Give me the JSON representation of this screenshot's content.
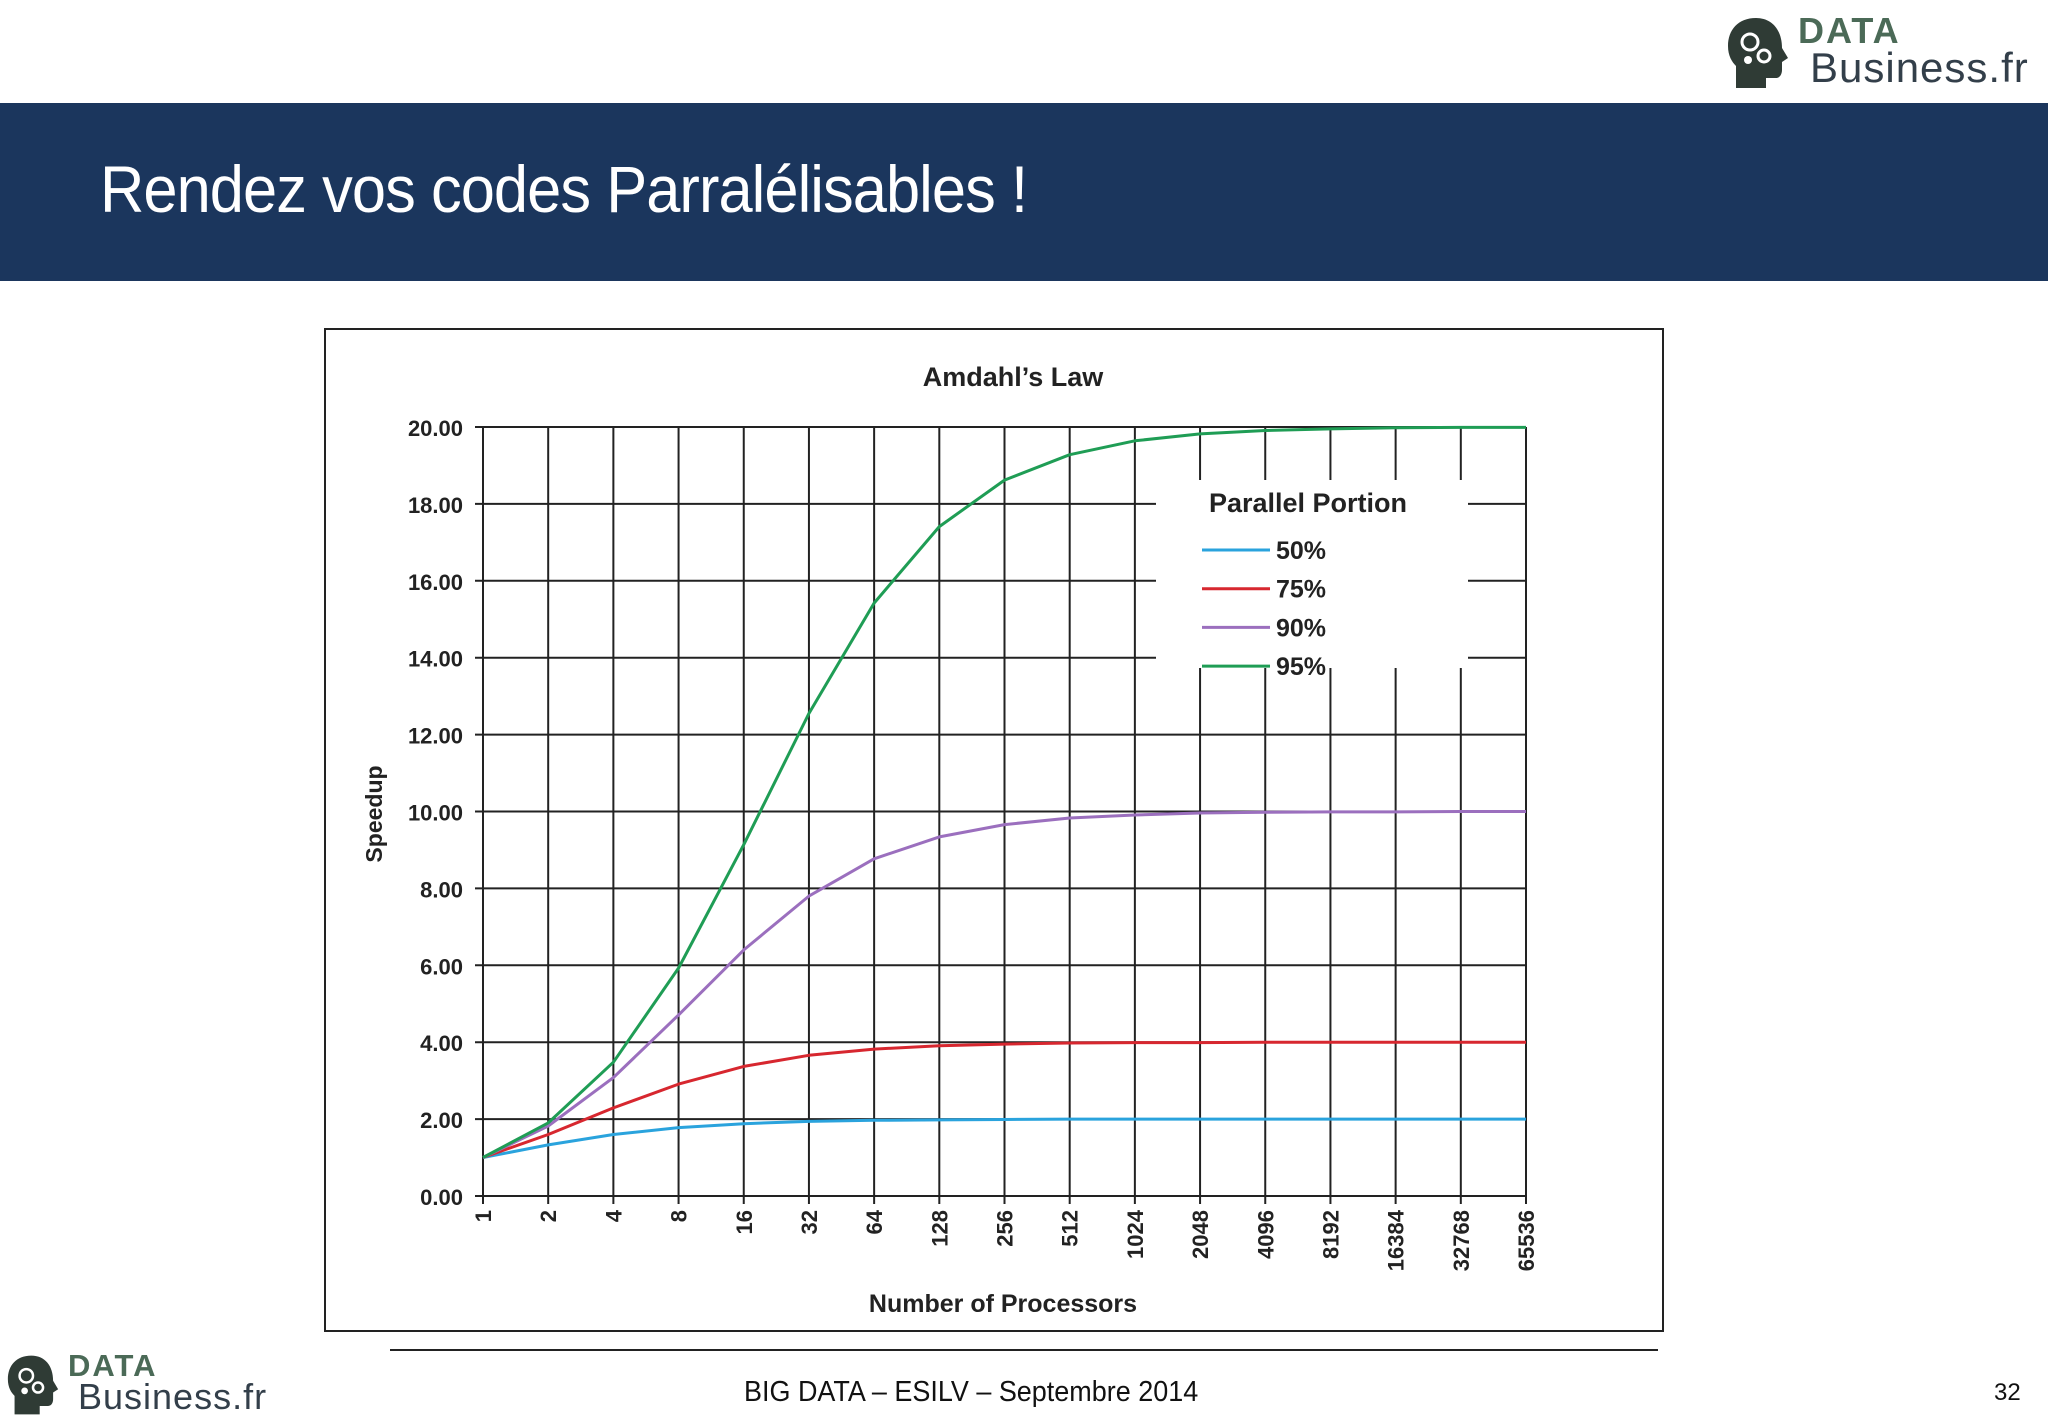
{
  "brand": {
    "data_word": "DATA",
    "business_word": "Business.fr"
  },
  "slide": {
    "title": "Rendez vos codes Parralélisables !"
  },
  "footer": {
    "text": "BIG DATA – ESILV – Septembre 2014",
    "page_number": "32"
  },
  "chart_data": {
    "type": "line",
    "title": "Amdahl’s Law",
    "xlabel": "Number of Processors",
    "ylabel": "Speedup",
    "x_scale": "log2",
    "categories": [
      "1",
      "2",
      "4",
      "8",
      "16",
      "32",
      "64",
      "128",
      "256",
      "512",
      "1024",
      "2048",
      "4096",
      "8192",
      "16384",
      "32768",
      "65536"
    ],
    "y_ticks": [
      "0.00",
      "2.00",
      "4.00",
      "6.00",
      "8.00",
      "10.00",
      "12.00",
      "14.00",
      "16.00",
      "18.00",
      "20.00"
    ],
    "ylim": [
      0,
      20
    ],
    "grid": true,
    "legend_title": "Parallel Portion",
    "legend_position": "top-right",
    "series": [
      {
        "name": "50%",
        "color": "#2aa3dd",
        "values": [
          1.0,
          1.33,
          1.6,
          1.78,
          1.88,
          1.94,
          1.97,
          1.98,
          1.99,
          2.0,
          2.0,
          2.0,
          2.0,
          2.0,
          2.0,
          2.0,
          2.0
        ]
      },
      {
        "name": "75%",
        "color": "#d7272f",
        "values": [
          1.0,
          1.6,
          2.29,
          2.91,
          3.37,
          3.66,
          3.82,
          3.91,
          3.95,
          3.98,
          3.99,
          3.99,
          4.0,
          4.0,
          4.0,
          4.0,
          4.0
        ]
      },
      {
        "name": "90%",
        "color": "#9b6fbe",
        "values": [
          1.0,
          1.82,
          3.08,
          4.71,
          6.4,
          7.8,
          8.77,
          9.34,
          9.66,
          9.83,
          9.91,
          9.96,
          9.98,
          9.99,
          9.99,
          10.0,
          10.0
        ]
      },
      {
        "name": "95%",
        "color": "#1f9d55",
        "values": [
          1.0,
          1.9,
          3.48,
          5.93,
          9.14,
          12.55,
          15.42,
          17.41,
          18.62,
          19.28,
          19.64,
          19.82,
          19.91,
          19.95,
          19.98,
          19.99,
          19.99
        ]
      }
    ]
  }
}
